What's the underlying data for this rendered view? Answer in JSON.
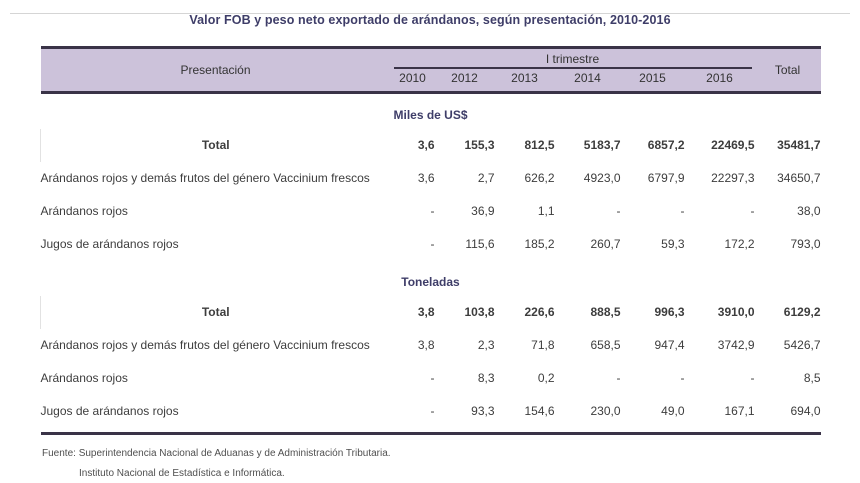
{
  "title": "Valor FOB y peso neto exportado de arándanos, según presentación, 2010-2016",
  "table": {
    "col_header": "Presentación",
    "group_header": "I trimestre",
    "years": [
      "2010",
      "2012",
      "2013",
      "2014",
      "2015",
      "2016"
    ],
    "total_header": "Total",
    "sections": [
      {
        "name": "Miles de US$",
        "rows": [
          {
            "label": "Total",
            "bold": true,
            "values": [
              "3,6",
              "155,3",
              "812,5",
              "5183,7",
              "6857,2",
              "22469,5",
              "35481,7"
            ]
          },
          {
            "label": "Arándanos rojos y demás frutos del género Vaccinium frescos",
            "bold": false,
            "values": [
              "3,6",
              "2,7",
              "626,2",
              "4923,0",
              "6797,9",
              "22297,3",
              "34650,7"
            ]
          },
          {
            "label": "Arándanos rojos",
            "bold": false,
            "values": [
              "-",
              "36,9",
              "1,1",
              "-",
              "-",
              "-",
              "38,0"
            ]
          },
          {
            "label": "Jugos de arándanos rojos",
            "bold": false,
            "values": [
              "-",
              "115,6",
              "185,2",
              "260,7",
              "59,3",
              "172,2",
              "793,0"
            ]
          }
        ]
      },
      {
        "name": "Toneladas",
        "rows": [
          {
            "label": "Total",
            "bold": true,
            "values": [
              "3,8",
              "103,8",
              "226,6",
              "888,5",
              "996,3",
              "3910,0",
              "6129,2"
            ]
          },
          {
            "label": "Arándanos rojos y demás frutos del género Vaccinium frescos",
            "bold": false,
            "values": [
              "3,8",
              "2,3",
              "71,8",
              "658,5",
              "947,4",
              "3742,9",
              "5426,7"
            ]
          },
          {
            "label": "Arándanos rojos",
            "bold": false,
            "values": [
              "-",
              "8,3",
              "0,2",
              "-",
              "-",
              "-",
              "8,5"
            ]
          },
          {
            "label": "Jugos de arándanos rojos",
            "bold": false,
            "values": [
              "-",
              "93,3",
              "154,6",
              "230,0",
              "49,0",
              "167,1",
              "694,0"
            ]
          }
        ]
      }
    ]
  },
  "footer": {
    "line1": "Fuente: Superintendencia Nacional de Aduanas y de Administración Tributaria.",
    "line2": "Instituto Nacional de Estadística e Informática."
  },
  "colors": {
    "header_bg": "#ccc2da",
    "border_dark": "#3a3347",
    "heading_text": "#3e3d68",
    "body_text": "#3d3d3d"
  }
}
